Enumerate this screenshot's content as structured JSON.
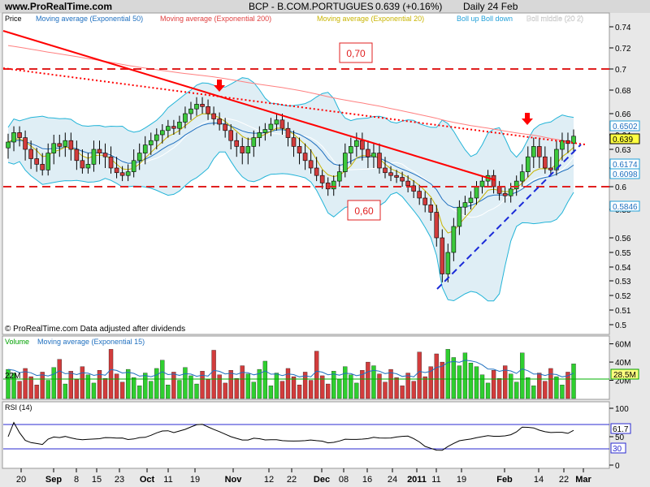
{
  "header": {
    "site": "www.ProRealTime.com",
    "instrument": "BCP - B.COM.PORTUGUES",
    "quote": "0.639 (+0.16%)",
    "period": "Daily  24 Feb"
  },
  "price_legend": [
    {
      "label": "Price",
      "color": "#000000"
    },
    {
      "label": "Moving average (Exponential 50)",
      "color": "#1e6fbf"
    },
    {
      "label": "Moving average (Exponential 200)",
      "color": "#e04040"
    },
    {
      "label": "Moving average (Exponential 20)",
      "color": "#c8b400"
    },
    {
      "label": "Boll up  Boll down",
      "color": "#22a0d8"
    },
    {
      "label": "Boll middle (20 2)",
      "color": "#ffffff"
    }
  ],
  "annotations": {
    "box_high": "0,70",
    "box_low": "0,60"
  },
  "footer_note": "© ProRealTime.com  Data adjusted after dividends",
  "volume_legend": [
    {
      "label": "Volume",
      "color": "#00a000"
    },
    {
      "label": "Moving average (Exponential 15)",
      "color": "#1e6fbf"
    }
  ],
  "volume_mid_label": "22M",
  "rsi_legend": {
    "label": "RSI (14)"
  },
  "x_axis_labels": [
    "20",
    "Sep",
    "8",
    "15",
    "23",
    "Oct",
    "11",
    "19",
    "Nov",
    "12",
    "22",
    "Dec",
    "08",
    "16",
    "24",
    "2011",
    "11",
    "19",
    "Feb",
    "14",
    "22",
    "Mar"
  ],
  "colors": {
    "up": "#3cc83c",
    "down": "#d23c3c",
    "ema200": "#ff8080",
    "ema50": "#1e6fbf",
    "ema20": "#c8b400",
    "boll": "#22b4d8",
    "trend": "#ff0000",
    "support": "#1a2ad8",
    "axis_box_cyan": "#22a0d8",
    "volume_ema": "#1e6fbf"
  },
  "chart_data": [
    {
      "type": "candlestick",
      "title": "BCP - B.COM.PORTUGUES",
      "ylim": [
        0.5,
        0.74
      ],
      "y_ticks": [
        "0.74",
        "0.72",
        "0.7",
        "0.68",
        "0.66",
        "0.64",
        "0.63",
        "0.62",
        "0.6",
        "0.58",
        "0.56",
        "0.55",
        "0.54",
        "0.53",
        "0.52",
        "0.51",
        "0.5"
      ],
      "value_boxes": [
        {
          "label": "0.6502",
          "series": "Boll up"
        },
        {
          "label": "0.639",
          "series": "Price"
        },
        {
          "label": "0.6174",
          "series": "EMA 50"
        },
        {
          "label": "0.6098",
          "series": "Boll down"
        },
        {
          "label": "0.5846",
          "series": "Boll down"
        }
      ],
      "horizontal_levels": [
        0.7,
        0.6
      ],
      "close_series": [
        0.635,
        0.642,
        0.638,
        0.63,
        0.625,
        0.622,
        0.618,
        0.628,
        0.634,
        0.632,
        0.636,
        0.63,
        0.624,
        0.62,
        0.622,
        0.63,
        0.628,
        0.626,
        0.62,
        0.615,
        0.612,
        0.616,
        0.624,
        0.628,
        0.633,
        0.636,
        0.64,
        0.644,
        0.648,
        0.646,
        0.652,
        0.66,
        0.664,
        0.668,
        0.666,
        0.66,
        0.655,
        0.65,
        0.644,
        0.636,
        0.632,
        0.628,
        0.632,
        0.638,
        0.642,
        0.645,
        0.65,
        0.654,
        0.646,
        0.638,
        0.632,
        0.628,
        0.624,
        0.62,
        0.612,
        0.604,
        0.598,
        0.606,
        0.616,
        0.628,
        0.632,
        0.636,
        0.63,
        0.626,
        0.628,
        0.62,
        0.615,
        0.612,
        0.61,
        0.606,
        0.601,
        0.596,
        0.59,
        0.584,
        0.578,
        0.56,
        0.535,
        0.55,
        0.568,
        0.582,
        0.586,
        0.59,
        0.6,
        0.606,
        0.612,
        0.6,
        0.594,
        0.592,
        0.598,
        0.606,
        0.616,
        0.626,
        0.632,
        0.626,
        0.62,
        0.618,
        0.63,
        0.636,
        0.634,
        0.639
      ],
      "volume": {
        "ylim": [
          0,
          65
        ],
        "unit": "M",
        "y_ticks": [
          "60M",
          "40M",
          "20M"
        ],
        "current": "28.5M"
      },
      "rsi": {
        "ylim": [
          0,
          100
        ],
        "y_ticks": [
          "100",
          "70",
          "50",
          "30",
          "0"
        ],
        "levels": [
          70,
          30
        ],
        "current": "61.7"
      },
      "xlabel": "",
      "ylabel": ""
    }
  ]
}
